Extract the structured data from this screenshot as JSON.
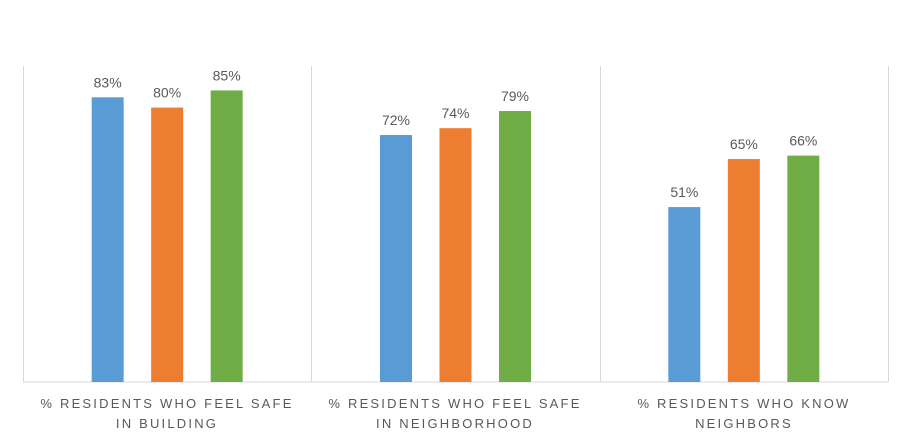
{
  "chart_data": {
    "type": "bar",
    "title": "",
    "xlabel": "",
    "ylabel": "",
    "ylim": [
      0,
      100
    ],
    "grid": false,
    "category_separators": true,
    "categories": [
      [
        "% RESIDENTS WHO FEEL SAFE",
        "IN BUILDING"
      ],
      [
        "% RESIDENTS WHO FEEL SAFE",
        "IN NEIGHBORHOOD"
      ],
      [
        "% RESIDENTS WHO KNOW",
        "NEIGHBORS"
      ]
    ],
    "series": [
      {
        "values": [
          83,
          72,
          51
        ],
        "labels": [
          "83%",
          "72%",
          "51%"
        ],
        "color": "#5b9bd5"
      },
      {
        "values": [
          80,
          74,
          65
        ],
        "labels": [
          "80%",
          "74%",
          "65%"
        ],
        "color": "#ed7d31"
      },
      {
        "values": [
          85,
          79,
          66
        ],
        "labels": [
          "85%",
          "79%",
          "66%"
        ],
        "color": "#70ad47"
      }
    ],
    "colors": {
      "axis": "#d9d9d9",
      "label_text": "#595959"
    }
  }
}
